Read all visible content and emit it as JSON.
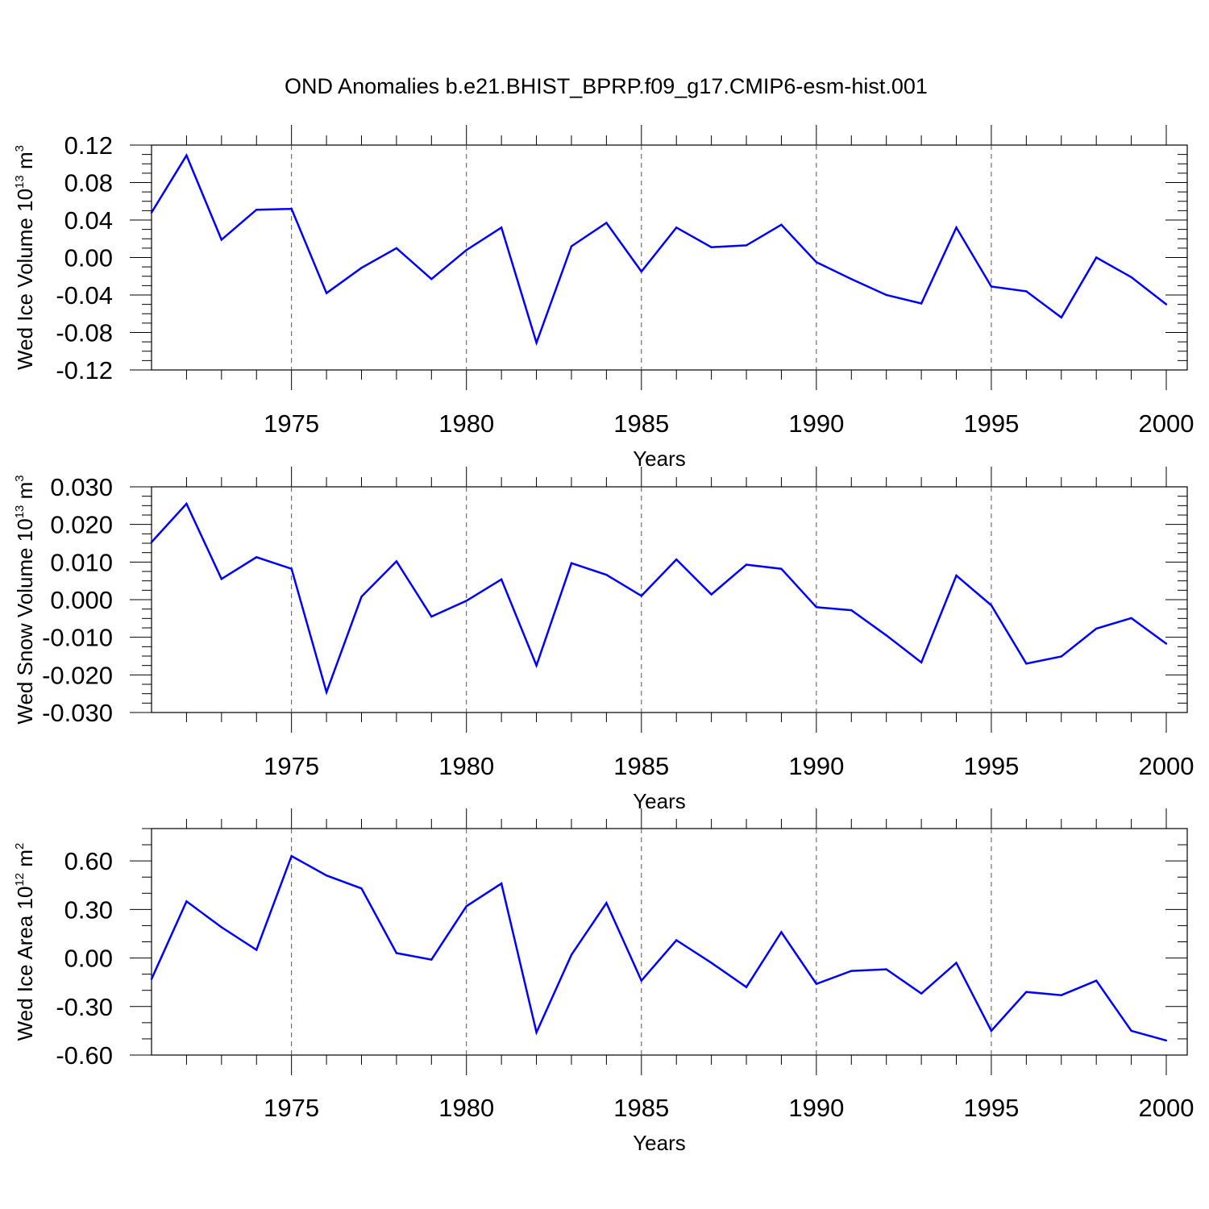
{
  "title": "OND Anomalies b.e21.BHIST_BPRP.f09_g17.CMIP6-esm-hist.001",
  "chart_data": [
    {
      "type": "line",
      "ylabel": {
        "text": "Wed Ice Volume 10",
        "exp": "13",
        "unit": "m",
        "unit_exp": "3"
      },
      "xlabel": "Years",
      "xlim": [
        1971,
        2000
      ],
      "ylim": [
        -0.12,
        0.12
      ],
      "yticks": [
        -0.12,
        -0.08,
        -0.04,
        0.0,
        0.04,
        0.08,
        0.12
      ],
      "ytick_labels": [
        "-0.12",
        "-0.08",
        "-0.04",
        "0.00",
        "0.04",
        "0.08",
        "0.12"
      ],
      "yminor": 0.01,
      "xticks": [
        1975,
        1980,
        1985,
        1990,
        1995,
        2000
      ],
      "xtick_labels": [
        "1975",
        "1980",
        "1985",
        "1990",
        "1995",
        "2000"
      ],
      "grid": "dashed vertical at major x ticks",
      "color": "#0000ff",
      "x": [
        1971,
        1972,
        1973,
        1974,
        1975,
        1976,
        1977,
        1978,
        1979,
        1980,
        1981,
        1982,
        1983,
        1984,
        1985,
        1986,
        1987,
        1988,
        1989,
        1990,
        1991,
        1992,
        1993,
        1994,
        1995,
        1996,
        1997,
        1998,
        1999,
        2000
      ],
      "values": [
        0.048,
        0.109,
        0.019,
        0.051,
        0.052,
        -0.038,
        -0.011,
        0.01,
        -0.023,
        0.008,
        0.032,
        -0.091,
        0.012,
        0.037,
        -0.015,
        0.032,
        0.011,
        0.013,
        0.035,
        -0.005,
        -0.023,
        -0.04,
        -0.049,
        0.032,
        -0.031,
        -0.036,
        -0.064,
        0.0,
        -0.021,
        -0.05
      ]
    },
    {
      "type": "line",
      "ylabel": {
        "text": "Wed Snow Volume 10",
        "exp": "13",
        "unit": "m",
        "unit_exp": "3"
      },
      "xlabel": "Years",
      "xlim": [
        1971,
        2000
      ],
      "ylim": [
        -0.03,
        0.03
      ],
      "yticks": [
        -0.03,
        -0.02,
        -0.01,
        0.0,
        0.01,
        0.02,
        0.03
      ],
      "ytick_labels": [
        "-0.030",
        "-0.020",
        "-0.010",
        "0.000",
        "0.010",
        "0.020",
        "0.030"
      ],
      "yminor": 0.0025,
      "xticks": [
        1975,
        1980,
        1985,
        1990,
        1995,
        2000
      ],
      "xtick_labels": [
        "1975",
        "1980",
        "1985",
        "1990",
        "1995",
        "2000"
      ],
      "grid": "dashed vertical at major x ticks",
      "color": "#0000ff",
      "x": [
        1971,
        1972,
        1973,
        1974,
        1975,
        1976,
        1977,
        1978,
        1979,
        1980,
        1981,
        1982,
        1983,
        1984,
        1985,
        1986,
        1987,
        1988,
        1989,
        1990,
        1991,
        1992,
        1993,
        1994,
        1995,
        1996,
        1997,
        1998,
        1999,
        2000
      ],
      "values": [
        0.0153,
        0.0255,
        0.0055,
        0.0113,
        0.0082,
        -0.0246,
        0.0008,
        0.0102,
        -0.0045,
        -0.0003,
        0.0054,
        -0.0175,
        0.0097,
        0.0066,
        0.001,
        0.0107,
        0.0014,
        0.0093,
        0.0082,
        -0.002,
        -0.0028,
        -0.0095,
        -0.0167,
        0.0064,
        -0.0015,
        -0.017,
        -0.0151,
        -0.0077,
        -0.0049,
        -0.0117
      ]
    },
    {
      "type": "line",
      "ylabel": {
        "text": "Wed Ice Area 10",
        "exp": "12",
        "unit": "m",
        "unit_exp": "2"
      },
      "xlabel": "Years",
      "xlim": [
        1971,
        2000
      ],
      "ylim": [
        -0.6,
        0.8
      ],
      "yticks": [
        -0.6,
        -0.3,
        0.0,
        0.3,
        0.6
      ],
      "ytick_labels": [
        "-0.60",
        "-0.30",
        "0.00",
        "0.30",
        "0.60"
      ],
      "yminor": 0.1,
      "xticks": [
        1975,
        1980,
        1985,
        1990,
        1995,
        2000
      ],
      "xtick_labels": [
        "1975",
        "1980",
        "1985",
        "1990",
        "1995",
        "2000"
      ],
      "grid": "dashed vertical at major x ticks",
      "color": "#0000ff",
      "x": [
        1971,
        1972,
        1973,
        1974,
        1975,
        1976,
        1977,
        1978,
        1979,
        1980,
        1981,
        1982,
        1983,
        1984,
        1985,
        1986,
        1987,
        1988,
        1989,
        1990,
        1991,
        1992,
        1993,
        1994,
        1995,
        1996,
        1997,
        1998,
        1999,
        2000
      ],
      "values": [
        -0.13,
        0.35,
        0.19,
        0.05,
        0.63,
        0.51,
        0.43,
        0.03,
        -0.01,
        0.32,
        0.46,
        -0.46,
        0.02,
        0.34,
        -0.14,
        0.11,
        -0.03,
        -0.18,
        0.16,
        -0.16,
        -0.08,
        -0.07,
        -0.22,
        -0.03,
        -0.45,
        -0.21,
        -0.23,
        -0.14,
        -0.45,
        -0.51
      ]
    }
  ]
}
